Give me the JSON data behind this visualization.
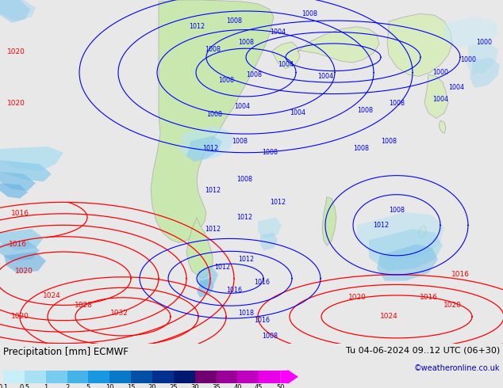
{
  "title_left": "Precipitation [mm] ECMWF",
  "title_right": "Tu 04-06-2024 09..12 UTC (06+30)",
  "copyright": "©weatheronline.co.uk",
  "colorbar_ticks": [
    "0.1",
    "0.5",
    "1",
    "2",
    "5",
    "10",
    "15",
    "20",
    "25",
    "30",
    "35",
    "40",
    "45",
    "50"
  ],
  "colorbar_colors": [
    "#c8eef8",
    "#a8e0f4",
    "#78ccf0",
    "#44b4e8",
    "#1898e0",
    "#0878c8",
    "#0050a8",
    "#003090",
    "#001870",
    "#700070",
    "#980098",
    "#c000c0",
    "#e800e8",
    "#ff00ff"
  ],
  "ocean_color": "#d8eef8",
  "land_color": "#c8e8b0",
  "land_color2": "#d8ecc0",
  "bg_color": "#d8eef8",
  "bottom_bg": "#e8e8e8",
  "figsize": [
    6.34,
    4.9
  ],
  "dpi": 100
}
